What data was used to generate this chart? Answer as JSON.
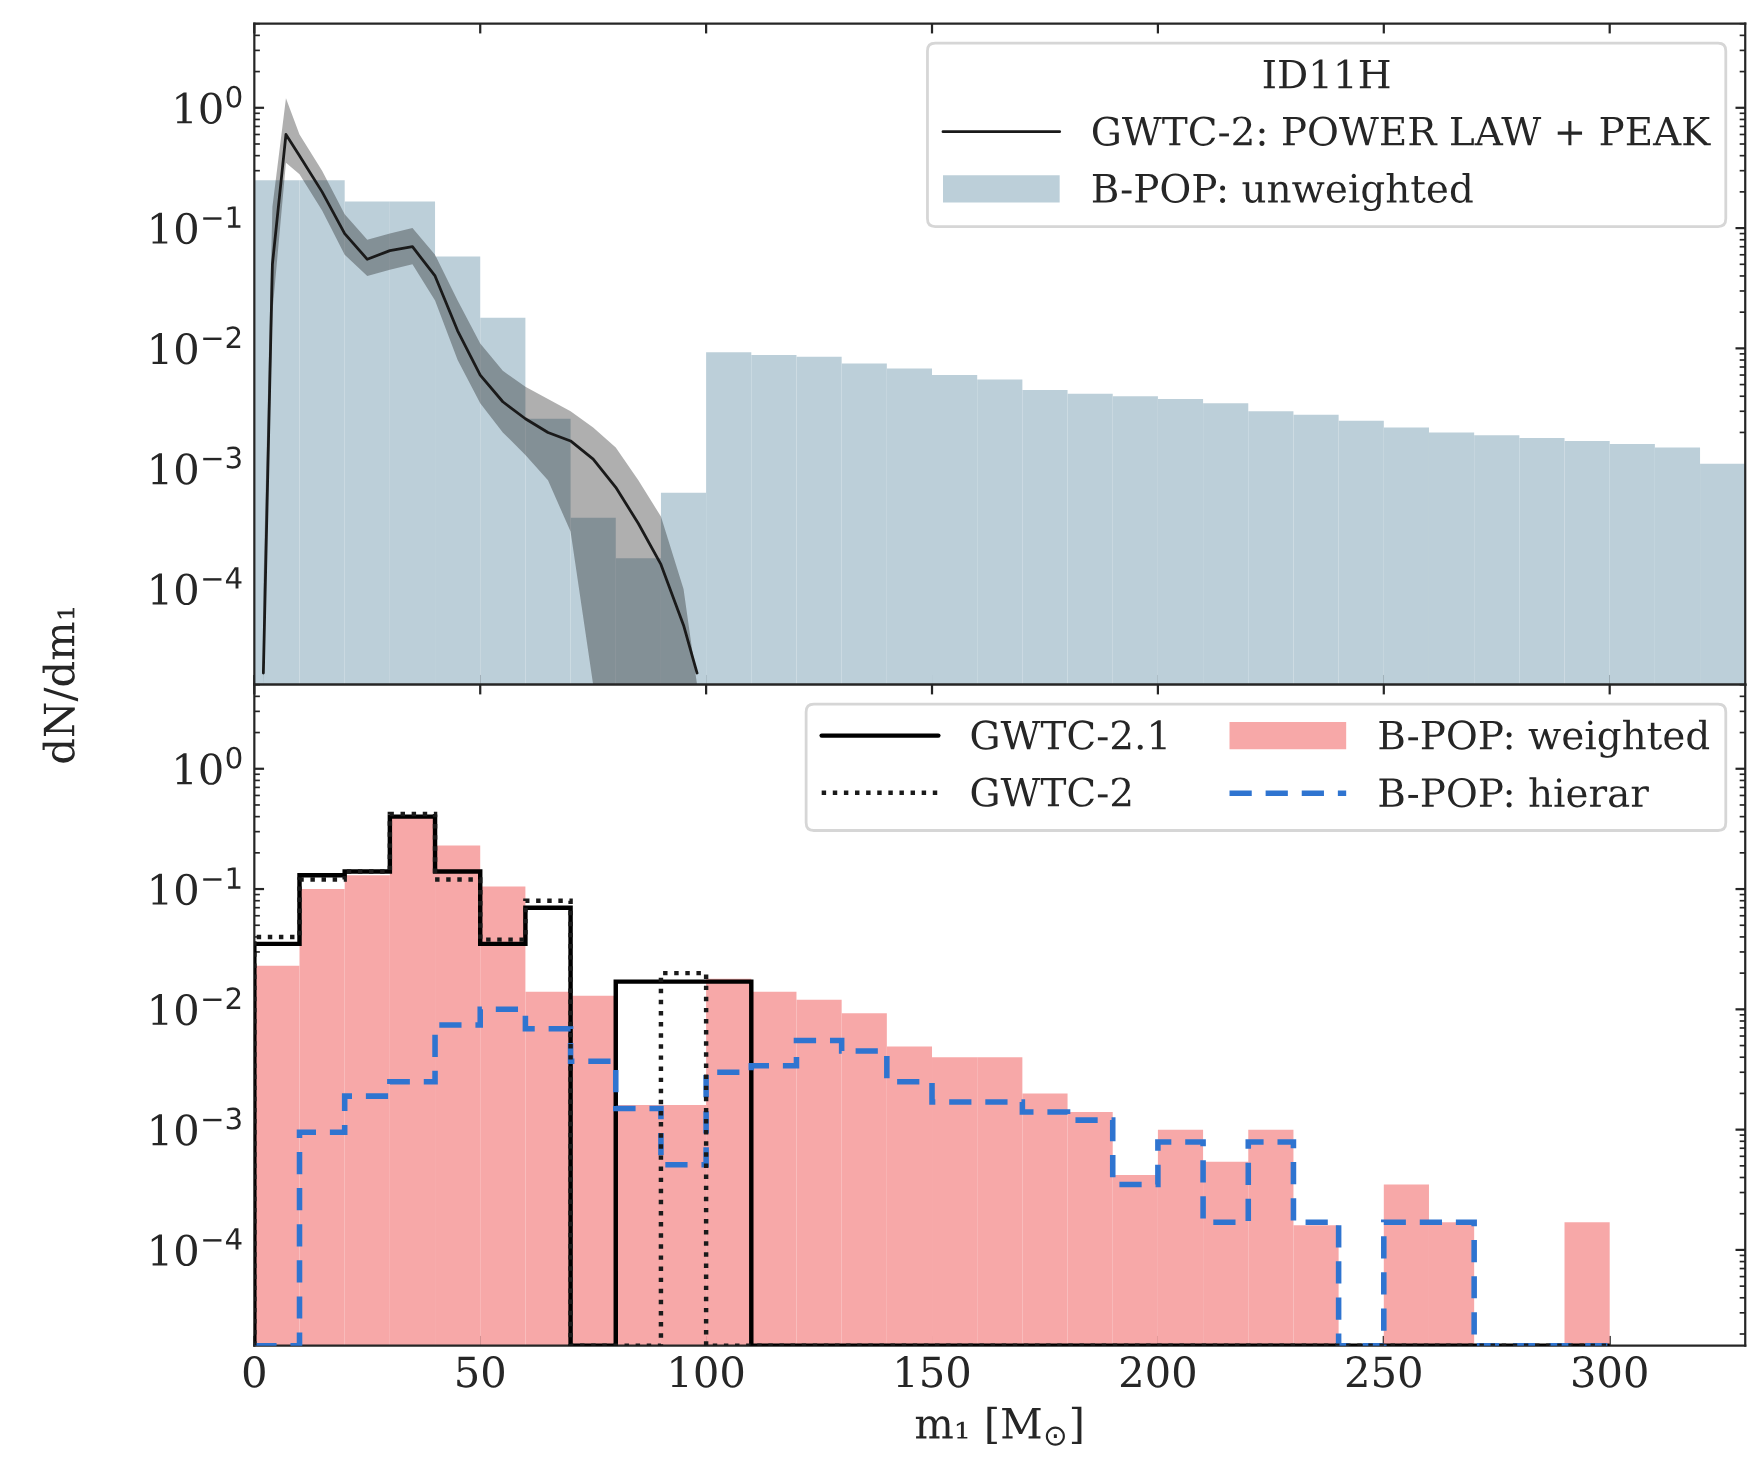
{
  "chart_data": [
    {
      "type": "histogram",
      "ylabel": "dN/dm₁",
      "log": "y",
      "xlim": [
        0,
        330
      ],
      "ylim": [
        1.6e-05,
        5
      ],
      "xticks": [
        0,
        50,
        100,
        150,
        200,
        250,
        300
      ],
      "yticks": [
        {
          "value": 1,
          "label": "10$^{0}$"
        },
        {
          "value": 0.1,
          "label": "10$^{−1}$"
        },
        {
          "value": 0.01,
          "label": "10$^{−2}$"
        },
        {
          "value": 0.001,
          "label": "10$^{−3}$"
        },
        {
          "value": 0.0001,
          "label": "10$^{−4}$"
        }
      ],
      "tick_labels": "y",
      "legend": "top right",
      "legend_title": "ID11H",
      "bins": [
        0,
        10,
        20,
        30,
        40,
        50,
        60,
        70,
        80,
        90,
        100,
        110,
        120,
        130,
        140,
        150,
        160,
        170,
        180,
        190,
        200,
        210,
        220,
        230,
        240,
        250,
        260,
        270,
        280,
        290,
        300,
        310,
        320,
        330
      ],
      "series": [
        {
          "type": "line",
          "name": "GWTC-2: POWER LAW + PEAK",
          "color": "#1a1a1a",
          "line_style": "solid",
          "x": [
            2,
            4,
            7,
            10,
            15,
            20,
            25,
            30,
            35,
            40,
            45,
            50,
            55,
            60,
            65,
            70,
            75,
            80,
            85,
            90,
            95,
            98
          ],
          "values": [
            2e-05,
            0.05,
            0.6,
            0.4,
            0.2,
            0.09,
            0.055,
            0.065,
            0.07,
            0.04,
            0.014,
            0.006,
            0.0036,
            0.0026,
            0.002,
            0.0017,
            0.0012,
            0.0007,
            0.00035,
            0.00016,
            5e-05,
            2e-05
          ],
          "lower": [
            1.6e-05,
            0.02,
            0.35,
            0.28,
            0.14,
            0.06,
            0.04,
            0.045,
            0.05,
            0.025,
            0.008,
            0.0035,
            0.002,
            0.0013,
            0.0008,
            0.0003,
            1.6e-05,
            1.6e-05,
            1.6e-05,
            1.6e-05,
            1.6e-05,
            1.6e-05
          ],
          "upper": [
            0.0001,
            0.15,
            1.2,
            0.6,
            0.3,
            0.13,
            0.08,
            0.09,
            0.1,
            0.06,
            0.025,
            0.011,
            0.0065,
            0.0048,
            0.0038,
            0.003,
            0.0022,
            0.0015,
            0.0008,
            0.0004,
            0.0001,
            1.6e-05
          ]
        },
        {
          "type": "histogram",
          "name": "B-POP: unweighted",
          "color": "#bccfd9",
          "values": [
            0.25,
            0.25,
            0.166,
            0.166,
            0.058,
            0.018,
            0.0026,
            0.00039,
            0.00018,
            0.00063,
            0.0093,
            0.0088,
            0.0085,
            0.0075,
            0.0068,
            0.006,
            0.0055,
            0.0045,
            0.0042,
            0.004,
            0.0038,
            0.0035,
            0.003,
            0.0028,
            0.0025,
            0.0022,
            0.002,
            0.0019,
            0.0018,
            0.0017,
            0.0016,
            0.0015,
            0.0011
          ]
        }
      ]
    },
    {
      "type": "histogram",
      "xlabel": "m₁ [M$_{⊙}$]",
      "log": "y",
      "xlim": [
        0,
        330
      ],
      "ylim": [
        1.6e-05,
        5
      ],
      "xticks": [
        0,
        50,
        100,
        150,
        200,
        250,
        300
      ],
      "yticks": [
        {
          "value": 1,
          "label": "10$^{0}$"
        },
        {
          "value": 0.1,
          "label": "10$^{−1}$"
        },
        {
          "value": 0.01,
          "label": "10$^{−2}$"
        },
        {
          "value": 0.001,
          "label": "10$^{−3}$"
        },
        {
          "value": 0.0001,
          "label": "10$^{−4}$"
        }
      ],
      "legend": "top right",
      "bins": [
        0,
        10,
        20,
        30,
        40,
        50,
        60,
        70,
        80,
        90,
        100,
        110,
        120,
        130,
        140,
        150,
        160,
        170,
        180,
        190,
        200,
        210,
        220,
        230,
        240,
        250,
        260,
        270,
        280,
        290,
        300
      ],
      "series": [
        {
          "name": "GWTC-2.1",
          "color": "#000000",
          "line_style": "solid",
          "values": [
            0.035,
            0.13,
            0.14,
            0.4,
            0.14,
            0.035,
            0.07,
            null,
            0.017,
            0.017,
            0.017,
            null,
            null,
            null,
            null,
            null,
            null,
            null,
            null,
            null,
            null,
            null,
            null,
            null,
            null,
            null,
            null,
            null,
            null,
            null
          ]
        },
        {
          "name": "GWTC-2",
          "color": "#1a1a1a",
          "line_style": "dotted",
          "values": [
            0.04,
            0.12,
            0.14,
            0.42,
            0.12,
            0.038,
            0.08,
            null,
            null,
            0.02,
            null,
            null,
            null,
            null,
            null,
            null,
            null,
            null,
            null,
            null,
            null,
            null,
            null,
            null,
            null,
            null,
            null,
            null,
            null,
            null
          ]
        },
        {
          "name": "B-POP: weighted",
          "color": "#f7a8a8",
          "values": [
            0.023,
            0.1,
            0.13,
            0.4,
            0.23,
            0.105,
            0.014,
            0.013,
            0.0016,
            0.0016,
            0.018,
            0.014,
            0.012,
            0.0093,
            0.0049,
            0.004,
            0.004,
            0.002,
            0.0014,
            0.00042,
            0.001,
            0.00054,
            0.001,
            0.00016,
            null,
            0.00035,
            0.00017,
            null,
            null,
            0.00017
          ]
        },
        {
          "name": "B-POP: hierar",
          "color": "#2f74d0",
          "line_style": "dashed",
          "values": [
            null,
            0.00095,
            0.0019,
            0.0025,
            0.0074,
            0.01,
            0.0069,
            0.0037,
            0.0015,
            0.00051,
            0.003,
            0.0034,
            0.0055,
            0.0045,
            0.0025,
            0.0017,
            0.0017,
            0.0014,
            0.0012,
            0.00035,
            0.00079,
            0.00017,
            0.00079,
            0.00017,
            null,
            0.00017,
            0.00017,
            null,
            null,
            null
          ]
        }
      ]
    }
  ]
}
